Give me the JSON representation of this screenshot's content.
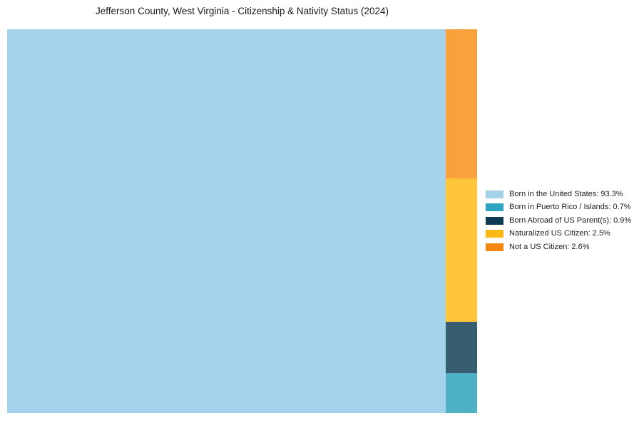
{
  "chart_data": {
    "type": "treemap",
    "title": "Jefferson County, West Virginia - Citizenship & Nativity Status (2024)",
    "unit": "%",
    "total": 100,
    "legend_position": "right-center",
    "series": [
      {
        "label": "Born in the United States",
        "value": 93.3,
        "legend_label": "Born in the United States: 93.3%",
        "chart_color": "#A4D3EB",
        "legend_color": "#A3D1E8"
      },
      {
        "label": "Born in Puerto Rico / Islands",
        "value": 0.7,
        "legend_label": "Born in Puerto Rico / Islands: 0.7%",
        "chart_color": "#4FB1C4",
        "legend_color": "#2EA3C2"
      },
      {
        "label": "Born Abroad of US Parent(s)",
        "value": 0.9,
        "legend_label": "Born Abroad of US Parent(s): 0.9%",
        "chart_color": "#385C70",
        "legend_color": "#0F3A53"
      },
      {
        "label": "Naturalized US Citizen",
        "value": 2.5,
        "legend_label": "Naturalized US Citizen: 2.5%",
        "chart_color": "#FEC43A",
        "legend_color": "#FCB814"
      },
      {
        "label": "Not a US Citizen",
        "value": 2.6,
        "legend_label": "Not a US Citizen: 2.6%",
        "chart_color": "#F9A13B",
        "legend_color": "#F6870F"
      }
    ]
  }
}
